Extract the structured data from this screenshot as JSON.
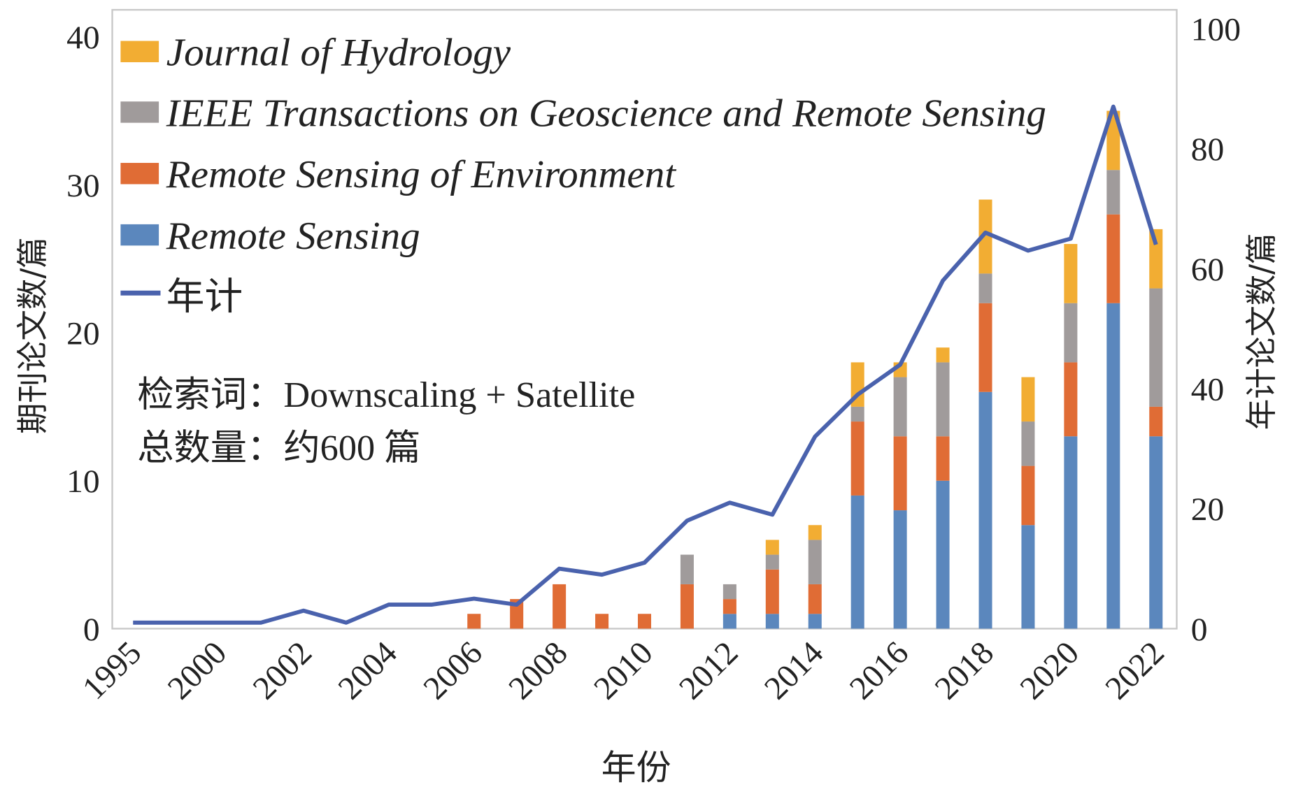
{
  "chart_data": {
    "type": "bar",
    "stacked": true,
    "title": "",
    "xlabel": "年份",
    "ylabel": "期刊论文数/篇",
    "y2label": "年计论文数/篇",
    "ylim": [
      0,
      40
    ],
    "y2lim": [
      0,
      100
    ],
    "yticks": [
      "0",
      "10",
      "20",
      "30",
      "40"
    ],
    "y2ticks": [
      "0",
      "20",
      "40",
      "60",
      "80",
      "100"
    ],
    "categories": [
      "1995",
      "1999",
      "2000",
      "2001",
      "2002",
      "2003",
      "2004",
      "2005",
      "2006",
      "2007",
      "2008",
      "2009",
      "2010",
      "2011",
      "2012",
      "2013",
      "2014",
      "2015",
      "2016",
      "2017",
      "2018",
      "2019",
      "2020",
      "2021",
      "2022"
    ],
    "tick_labels": [
      "1995",
      "",
      "2000",
      "",
      "2002",
      "",
      "2004",
      "",
      "2006",
      "",
      "2008",
      "",
      "2010",
      "",
      "2012",
      "",
      "2014",
      "",
      "2016",
      "",
      "2018",
      "",
      "2020",
      "",
      "2022"
    ],
    "series": [
      {
        "name": "Remote Sensing",
        "color": "#5b87bd",
        "values": [
          0,
          0,
          0,
          0,
          0,
          0,
          0,
          0,
          0,
          0,
          0,
          0,
          0,
          0,
          1,
          1,
          1,
          9,
          8,
          10,
          16,
          7,
          13,
          22,
          13
        ]
      },
      {
        "name": "Remote Sensing of Environment",
        "color": "#e06c35",
        "values": [
          0,
          0,
          0,
          0,
          0,
          0,
          0,
          0,
          1,
          2,
          3,
          1,
          1,
          3,
          1,
          3,
          2,
          5,
          5,
          3,
          6,
          4,
          5,
          6,
          2
        ]
      },
      {
        "name": "IEEE Transactions on Geoscience and Remote Sensing",
        "color": "#a09b9b",
        "values": [
          0,
          0,
          0,
          0,
          0,
          0,
          0,
          0,
          0,
          0,
          0,
          0,
          0,
          2,
          1,
          1,
          3,
          1,
          4,
          5,
          2,
          3,
          4,
          3,
          8
        ]
      },
      {
        "name": "Journal of Hydrology",
        "color": "#f2ad33",
        "values": [
          0,
          0,
          0,
          0,
          0,
          0,
          0,
          0,
          0,
          0,
          0,
          0,
          0,
          0,
          0,
          1,
          1,
          3,
          1,
          1,
          5,
          3,
          4,
          4,
          4
        ]
      }
    ],
    "line": {
      "name": "年计",
      "color": "#4a62ad",
      "axis": "right",
      "values": [
        1,
        1,
        1,
        1,
        3,
        1,
        4,
        4,
        5,
        4,
        10,
        9,
        11,
        18,
        21,
        19,
        32,
        39,
        44,
        58,
        66,
        63,
        65,
        87,
        64
      ]
    },
    "legend_placement": "top-left",
    "annotations": [
      "检索词：Downscaling + Satellite",
      "总数量：约600 篇"
    ]
  }
}
